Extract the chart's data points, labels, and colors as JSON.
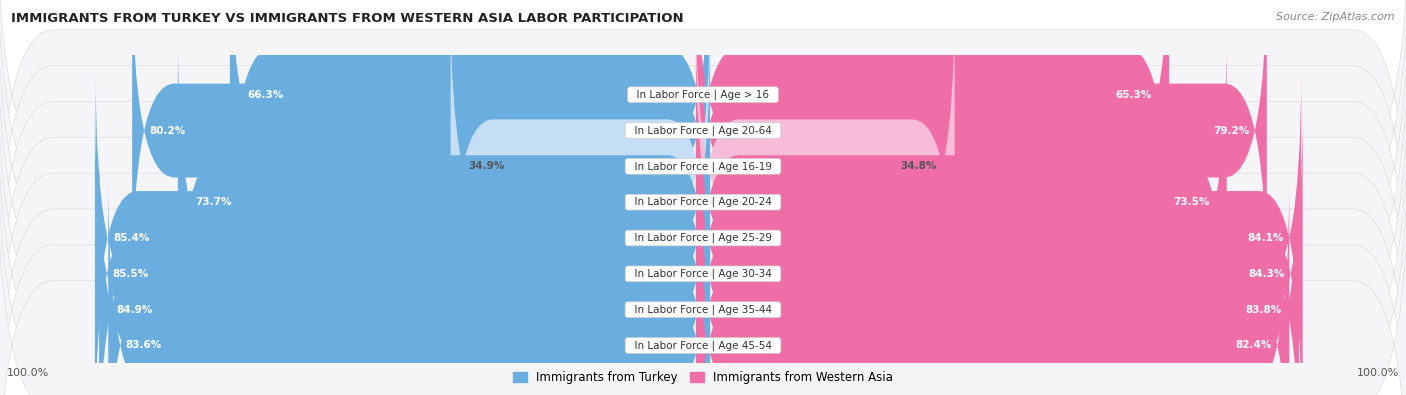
{
  "title": "IMMIGRANTS FROM TURKEY VS IMMIGRANTS FROM WESTERN ASIA LABOR PARTICIPATION",
  "source": "Source: ZipAtlas.com",
  "categories": [
    "In Labor Force | Age > 16",
    "In Labor Force | Age 20-64",
    "In Labor Force | Age 16-19",
    "In Labor Force | Age 20-24",
    "In Labor Force | Age 25-29",
    "In Labor Force | Age 30-34",
    "In Labor Force | Age 35-44",
    "In Labor Force | Age 45-54"
  ],
  "turkey_values": [
    66.3,
    80.2,
    34.9,
    73.7,
    85.4,
    85.5,
    84.9,
    83.6
  ],
  "western_asia_values": [
    65.3,
    79.2,
    34.8,
    73.5,
    84.1,
    84.3,
    83.8,
    82.4
  ],
  "turkey_color": "#6AAEE0",
  "turkey_color_light": "#C5DDF5",
  "western_asia_color": "#EF6EA8",
  "western_asia_color_light": "#F7BDD8",
  "bar_bg_color": "#EBEBF0",
  "row_bg_color": "#F5F5F8",
  "max_value": 100.0,
  "legend_turkey": "Immigrants from Turkey",
  "legend_western_asia": "Immigrants from Western Asia"
}
